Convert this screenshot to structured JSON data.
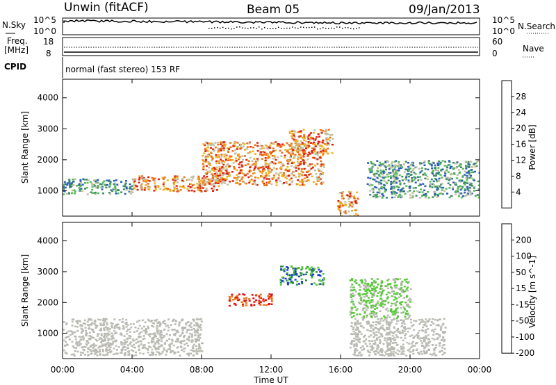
{
  "header": {
    "station": "Unwin (fitACF)",
    "beam": "Beam 05",
    "date": "09/Jan/2013"
  },
  "top_panels": {
    "nsky_label": "N.Sky",
    "nsearch_label": "N.Search",
    "freq_label_1": "Freq.",
    "freq_label_2": "[MHz]",
    "nave_label": "Nave",
    "cpid_label": "CPID",
    "cpid_text": "normal (fast stereo) 153 RF",
    "noise_ticks_left": [
      "10^5",
      "10^0"
    ],
    "noise_ticks_right": [
      "10^5",
      "10^0"
    ],
    "freq_ticks_left": [
      "18",
      "8"
    ],
    "nave_ticks_right": [
      "60",
      "0"
    ]
  },
  "chart_data": [
    {
      "type": "heatmap",
      "panel": "power",
      "xlabel": "Time UT",
      "ylabel": "Slant Range [km]",
      "x_ticks": [
        "00:00",
        "04:00",
        "08:00",
        "12:00",
        "16:00",
        "20:00",
        "00:00"
      ],
      "xlim_hours": [
        0,
        24
      ],
      "y_ticks": [
        "1000",
        "2000",
        "3000",
        "4000"
      ],
      "ylim": [
        180,
        4600
      ],
      "colorbar_label": "Power [dB]",
      "colorbar_ticks": [
        "4",
        "8",
        "12",
        "16",
        "20",
        "24",
        "28"
      ],
      "colorbar_colors": [
        "#1010e0",
        "#2a5fb8",
        "#3f8a6c",
        "#58b858",
        "#c0c0a0",
        "#f0b020",
        "#f07010",
        "#e02010"
      ],
      "echo_regions": [
        {
          "t": [
            0.0,
            4.0
          ],
          "r": [
            900,
            1400
          ],
          "level": "medium"
        },
        {
          "t": [
            4.0,
            9.0
          ],
          "r": [
            1000,
            1500
          ],
          "level": "strong"
        },
        {
          "t": [
            8.0,
            15.0
          ],
          "r": [
            1200,
            2600
          ],
          "level": "strong"
        },
        {
          "t": [
            13.0,
            15.5
          ],
          "r": [
            2200,
            3000
          ],
          "level": "strong"
        },
        {
          "t": [
            15.8,
            17.0
          ],
          "r": [
            200,
            1000
          ],
          "level": "strong"
        },
        {
          "t": [
            17.5,
            24.0
          ],
          "r": [
            800,
            2000
          ],
          "level": "medium"
        }
      ]
    },
    {
      "type": "heatmap",
      "panel": "velocity",
      "xlabel": "Time UT",
      "ylabel": "Slant Range [km]",
      "x_ticks": [
        "00:00",
        "04:00",
        "08:00",
        "12:00",
        "16:00",
        "20:00",
        "00:00"
      ],
      "xlim_hours": [
        0,
        24
      ],
      "y_ticks": [
        "1000",
        "2000",
        "3000",
        "4000"
      ],
      "ylim": [
        180,
        4600
      ],
      "colorbar_label": "Velocity [m s^-1]",
      "colorbar_ticks": [
        "200",
        "100",
        "50",
        "15",
        "-15",
        "-50",
        "-100",
        "-200"
      ],
      "colorbar_colors": [
        "#1a3ad0",
        "#2a8a4a",
        "#58c838",
        "#b8b8b0",
        "#c0c0b8",
        "#f0b020",
        "#f07010",
        "#e01010"
      ],
      "echo_regions": [
        {
          "t": [
            0.0,
            8.0
          ],
          "r": [
            300,
            1500
          ],
          "level": "ground-scatter"
        },
        {
          "t": [
            9.5,
            12.0
          ],
          "r": [
            1900,
            2300
          ],
          "level": "negative-fast"
        },
        {
          "t": [
            12.5,
            15.0
          ],
          "r": [
            2600,
            3200
          ],
          "level": "positive-fast"
        },
        {
          "t": [
            16.5,
            20.0
          ],
          "r": [
            1500,
            2800
          ],
          "level": "positive-slow"
        },
        {
          "t": [
            16.5,
            22.0
          ],
          "r": [
            300,
            1500
          ],
          "level": "ground-scatter"
        }
      ]
    }
  ]
}
